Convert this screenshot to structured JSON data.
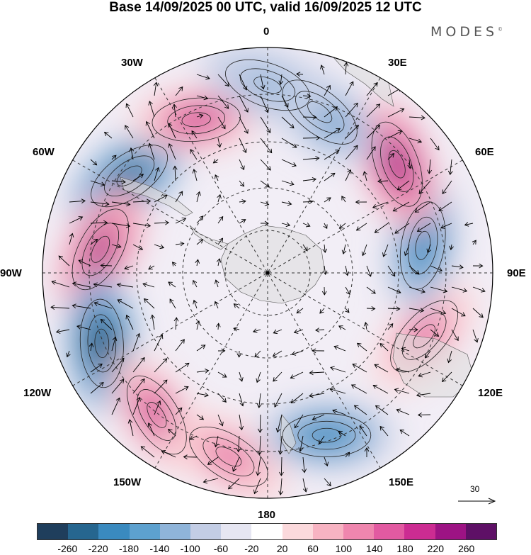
{
  "title": "Base 14/09/2025 00 UTC, valid 16/09/2025 12 UTC",
  "brand": "MODES",
  "brand_mark": "©",
  "longitude_labels": {
    "lon_0": "0",
    "lon_30e": "30E",
    "lon_60e": "60E",
    "lon_90e": "90E",
    "lon_120e": "120E",
    "lon_150e": "150E",
    "lon_180": "180",
    "lon_150w": "150W",
    "lon_120w": "120W",
    "lon_90w": "90W",
    "lon_60w": "60W",
    "lon_30w": "30W"
  },
  "reference_vector": {
    "value": "30"
  },
  "colorbar": {
    "colors": [
      "#1f3e5c",
      "#26668f",
      "#3a8abf",
      "#5da1cf",
      "#8fb4d9",
      "#c3cde5",
      "#e6e6f2",
      "#ffffff",
      "#fbd9dc",
      "#f7b3c2",
      "#ef86ae",
      "#e25aa1",
      "#cc2c92",
      "#9d1384",
      "#5e1066"
    ],
    "ticks": [
      "-260",
      "-220",
      "-180",
      "-140",
      "-100",
      "-60",
      "-20",
      "20",
      "60",
      "100",
      "140",
      "180",
      "220",
      "260"
    ]
  },
  "anomaly_centers": [
    {
      "lat": -45,
      "lon": -55,
      "value": -230
    },
    {
      "lat": -45,
      "lon": -82,
      "value": 240
    },
    {
      "lat": -42,
      "lon": -113,
      "value": -250
    },
    {
      "lat": -42,
      "lon": -142,
      "value": 220
    },
    {
      "lat": -40,
      "lon": -168,
      "value": 160
    },
    {
      "lat": -44,
      "lon": 160,
      "value": -200
    },
    {
      "lat": -45,
      "lon": 112,
      "value": 180
    },
    {
      "lat": -48,
      "lon": 80,
      "value": -190
    },
    {
      "lat": -45,
      "lon": 50,
      "value": 250
    },
    {
      "lat": -45,
      "lon": 18,
      "value": -170
    },
    {
      "lat": -45,
      "lon": -25,
      "value": 200
    },
    {
      "lat": -40,
      "lon": 0,
      "value": -120
    }
  ]
}
